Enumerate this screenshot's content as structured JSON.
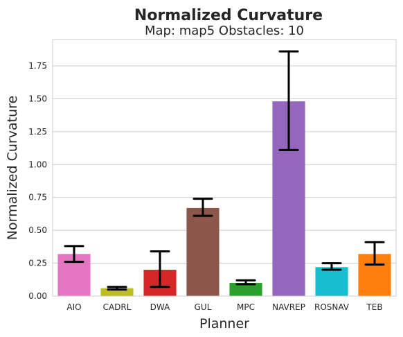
{
  "chart_data": {
    "type": "bar",
    "title": "Normalized Curvature",
    "subtitle": "Map: map5 Obstacles: 10",
    "xlabel": "Planner",
    "ylabel": "Normalized Curvature",
    "categories": [
      "AIO",
      "CADRL",
      "DWA",
      "GUL",
      "MPC",
      "NAVREP",
      "ROSNAV",
      "TEB"
    ],
    "values": [
      0.32,
      0.06,
      0.2,
      0.67,
      0.1,
      1.48,
      0.22,
      0.32
    ],
    "error_low": [
      0.26,
      0.05,
      0.07,
      0.61,
      0.09,
      1.11,
      0.2,
      0.24
    ],
    "error_high": [
      0.38,
      0.07,
      0.34,
      0.74,
      0.12,
      1.86,
      0.25,
      0.41
    ],
    "colors": [
      "#e377c2",
      "#bcbd22",
      "#d62728",
      "#8c564b",
      "#2ca02c",
      "#9467bd",
      "#17becf",
      "#ff7f0e"
    ],
    "ylim": [
      0,
      1.95
    ],
    "yticks": [
      "0.00",
      "0.25",
      "0.50",
      "0.75",
      "1.00",
      "1.25",
      "1.50",
      "1.75"
    ],
    "grid": "horizontal",
    "legend": "none"
  }
}
